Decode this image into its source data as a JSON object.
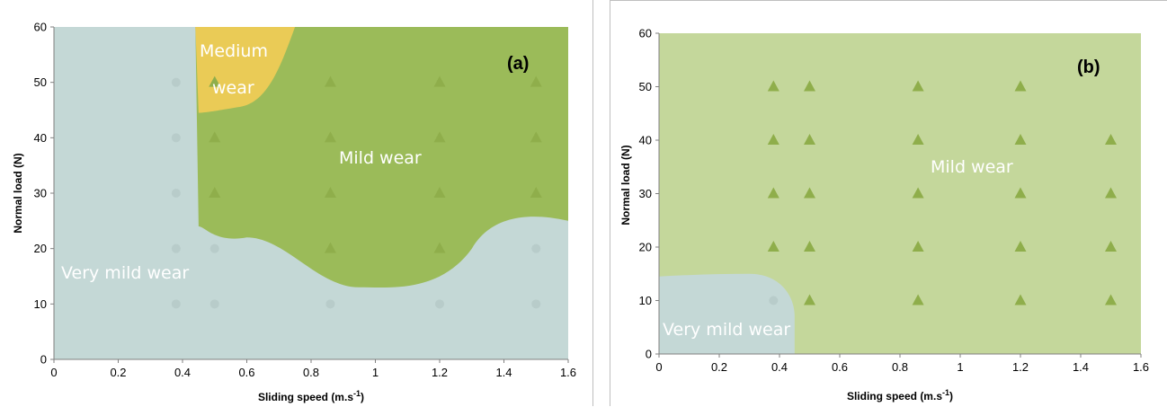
{
  "chart_data": [
    {
      "type": "scatter",
      "panel_label": "(a)",
      "xlabel": "Sliding speed (m.s-1)",
      "xlabel_base": "Sliding speed (m.s",
      "xlabel_sup": "-1",
      "xlabel_tail": ")",
      "ylabel": "Normal load  (N)",
      "xlim": [
        0,
        1.6
      ],
      "ylim": [
        0,
        60
      ],
      "x_ticks": [
        "0",
        "0.2",
        "0.4",
        "0.6",
        "0.8",
        "1",
        "1.2",
        "1.4",
        "1.6"
      ],
      "y_ticks": [
        "0",
        "10",
        "20",
        "30",
        "40",
        "50",
        "60"
      ],
      "regions": [
        {
          "label": "Very mild wear",
          "color": "#c4d8d6"
        },
        {
          "label_lines": [
            "Medium",
            "wear"
          ],
          "label": "Medium wear",
          "color": "#eacb56"
        },
        {
          "label": "Mild wear",
          "color": "#9bbb59"
        }
      ],
      "series": [
        {
          "marker": "circle",
          "color": "#b8ccca",
          "points": [
            [
              0.38,
              50
            ],
            [
              0.38,
              40
            ],
            [
              0.38,
              30
            ],
            [
              0.38,
              20
            ],
            [
              0.38,
              10
            ],
            [
              0.5,
              20
            ],
            [
              0.5,
              10
            ],
            [
              0.86,
              10
            ],
            [
              1.2,
              10
            ],
            [
              1.5,
              20
            ],
            [
              1.5,
              10
            ]
          ]
        },
        {
          "marker": "triangle",
          "color": "#8fae4b",
          "points": [
            [
              0.5,
              50
            ],
            [
              0.5,
              40
            ],
            [
              0.5,
              30
            ],
            [
              0.86,
              50
            ],
            [
              0.86,
              40
            ],
            [
              0.86,
              30
            ],
            [
              0.86,
              20
            ],
            [
              1.2,
              50
            ],
            [
              1.2,
              40
            ],
            [
              1.2,
              30
            ],
            [
              1.2,
              20
            ],
            [
              1.5,
              50
            ],
            [
              1.5,
              40
            ],
            [
              1.5,
              30
            ]
          ]
        }
      ]
    },
    {
      "type": "scatter",
      "panel_label": "(b)",
      "xlabel": "Sliding speed (m.s-1)",
      "xlabel_base": "Sliding speed (m.s",
      "xlabel_sup": "-1",
      "xlabel_tail": ")",
      "ylabel": "Normal load  (N)",
      "xlim": [
        0,
        1.6
      ],
      "ylim": [
        0,
        60
      ],
      "x_ticks": [
        "0",
        "0.2",
        "0.4",
        "0.6",
        "0.8",
        "1",
        "1.2",
        "1.4",
        "1.6"
      ],
      "y_ticks": [
        "0",
        "10",
        "20",
        "30",
        "40",
        "50",
        "60"
      ],
      "regions": [
        {
          "label": "Mild wear",
          "color": "#c4d79b"
        },
        {
          "label": "Very mild wear",
          "color": "#c4d8d6"
        }
      ],
      "series": [
        {
          "marker": "circle",
          "color": "#b8ccca",
          "points": [
            [
              0.38,
              10
            ]
          ]
        },
        {
          "marker": "triangle",
          "color": "#8fae4b",
          "points": [
            [
              0.38,
              50
            ],
            [
              0.38,
              40
            ],
            [
              0.38,
              30
            ],
            [
              0.38,
              20
            ],
            [
              0.5,
              50
            ],
            [
              0.5,
              40
            ],
            [
              0.5,
              30
            ],
            [
              0.5,
              20
            ],
            [
              0.5,
              10
            ],
            [
              0.86,
              50
            ],
            [
              0.86,
              40
            ],
            [
              0.86,
              30
            ],
            [
              0.86,
              20
            ],
            [
              0.86,
              10
            ],
            [
              1.2,
              50
            ],
            [
              1.2,
              40
            ],
            [
              1.2,
              30
            ],
            [
              1.2,
              20
            ],
            [
              1.2,
              10
            ],
            [
              1.5,
              40
            ],
            [
              1.5,
              30
            ],
            [
              1.5,
              20
            ],
            [
              1.5,
              10
            ]
          ]
        }
      ]
    }
  ]
}
